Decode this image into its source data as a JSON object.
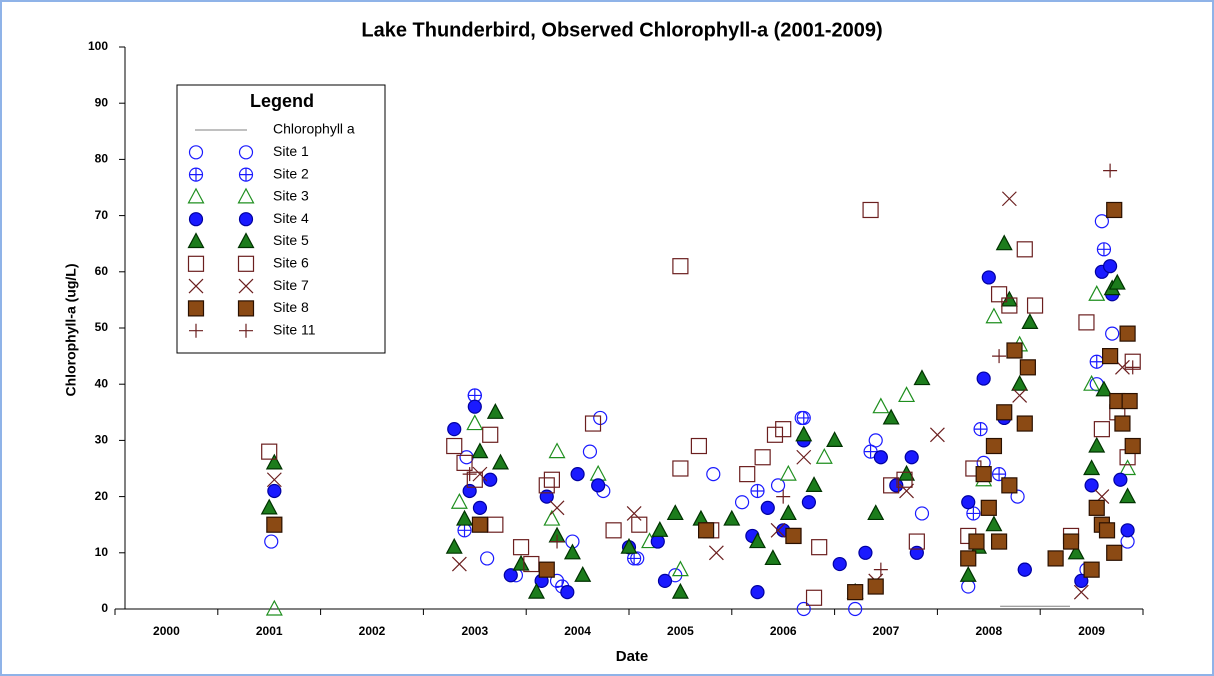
{
  "chart_data": {
    "type": "scatter",
    "title": "Lake Thunderbird, Observed Chlorophyll-a (2001-2009)",
    "xlabel": "Date",
    "ylabel": "Chlorophyll-a (ug/L)",
    "legend_title": "Legend",
    "xlim": [
      2000,
      2010
    ],
    "xticks": [
      2000,
      2001,
      2002,
      2003,
      2004,
      2005,
      2006,
      2007,
      2008,
      2009
    ],
    "ylim": [
      0,
      100
    ],
    "yticks": [
      0,
      10,
      20,
      30,
      40,
      50,
      60,
      70,
      80,
      90,
      100
    ],
    "series": [
      {
        "name": "Chlorophyll a",
        "color": "#808080",
        "marker": "line",
        "x": [
          2008.61,
          2009.29
        ],
        "values": [
          0.5,
          0.5
        ]
      },
      {
        "name": "Site 1",
        "color": "#1a1aff",
        "marker": "circle-open",
        "x": [
          2001.52,
          2003.5,
          2003.62,
          2003.42,
          2003.9,
          2004.72,
          2004.62,
          2004.45,
          2004.3,
          2004.75,
          2005.08,
          2005.82,
          2005.45,
          2006.1,
          2006.45,
          2006.68,
          2006.7,
          2007.2,
          2007.4,
          2007.85,
          2008.3,
          2008.45,
          2008.78,
          2008.85,
          2009.6,
          2009.7,
          2009.85,
          2009.55,
          2009.45
        ],
        "values": [
          12,
          38,
          9,
          27,
          6,
          34,
          28,
          12,
          5,
          21,
          9,
          24,
          6,
          19,
          22,
          34,
          0,
          0,
          30,
          17,
          4,
          26,
          20,
          7,
          69,
          49,
          12,
          40,
          7
        ]
      },
      {
        "name": "Site 2",
        "color": "#1a1aff",
        "marker": "circle-plus",
        "x": [
          2003.5,
          2003.4,
          2004.35,
          2005.05,
          2006.25,
          2006.7,
          2007.35,
          2008.42,
          2008.6,
          2009.62,
          2009.55,
          2008.35
        ],
        "values": [
          38,
          14,
          4,
          9,
          21,
          34,
          28,
          32,
          24,
          64,
          44,
          17
        ]
      },
      {
        "name": "Site 3",
        "color": "#1f8f1f",
        "marker": "triangle-open",
        "x": [
          2001.55,
          2003.35,
          2003.5,
          2004.3,
          2004.25,
          2004.7,
          2005.2,
          2005.5,
          2006.55,
          2006.9,
          2007.45,
          2007.7,
          2008.55,
          2008.8,
          2008.45,
          2009.55,
          2009.85,
          2009.5
        ],
        "values": [
          0,
          19,
          33,
          28,
          16,
          24,
          12,
          7,
          24,
          27,
          36,
          38,
          52,
          47,
          23,
          56,
          25,
          40
        ]
      },
      {
        "name": "Site 4",
        "color": "#1a1aff",
        "marker": "circle",
        "x": [
          2001.55,
          2003.3,
          2003.45,
          2003.5,
          2003.55,
          2003.65,
          2003.85,
          2004.2,
          2004.4,
          2004.5,
          2004.7,
          2004.15,
          2005.0,
          2005.28,
          2005.35,
          2006.2,
          2006.25,
          2006.35,
          2006.5,
          2006.7,
          2006.75,
          2007.05,
          2007.3,
          2007.45,
          2007.6,
          2007.75,
          2007.8,
          2008.3,
          2008.45,
          2008.5,
          2008.65,
          2008.85,
          2009.4,
          2009.5,
          2009.6,
          2009.68,
          2009.7,
          2009.78,
          2009.85
        ],
        "values": [
          21,
          32,
          21,
          36,
          18,
          23,
          6,
          20,
          3,
          24,
          22,
          5,
          11,
          12,
          5,
          13,
          3,
          18,
          14,
          30,
          19,
          8,
          10,
          27,
          22,
          27,
          10,
          19,
          41,
          59,
          34,
          7,
          5,
          22,
          60,
          61,
          56,
          23,
          14
        ]
      },
      {
        "name": "Site 5",
        "color": "#1c7c1c",
        "marker": "triangle",
        "x": [
          2001.5,
          2001.55,
          2003.3,
          2003.4,
          2003.55,
          2003.7,
          2003.75,
          2003.95,
          2004.1,
          2004.3,
          2004.45,
          2004.55,
          2005.0,
          2005.3,
          2005.45,
          2005.5,
          2005.7,
          2006.0,
          2006.25,
          2006.4,
          2006.55,
          2006.7,
          2006.8,
          2007.0,
          2007.2,
          2007.4,
          2007.55,
          2007.7,
          2007.85,
          2008.3,
          2008.4,
          2008.55,
          2008.65,
          2008.7,
          2008.8,
          2008.9,
          2009.35,
          2009.5,
          2009.55,
          2009.62,
          2009.7,
          2009.75,
          2009.85
        ],
        "values": [
          18,
          26,
          11,
          16,
          28,
          35,
          26,
          8,
          3,
          13,
          10,
          6,
          11,
          14,
          17,
          3,
          16,
          16,
          12,
          9,
          17,
          31,
          22,
          30,
          3,
          17,
          34,
          24,
          41,
          6,
          11,
          15,
          65,
          55,
          40,
          51,
          10,
          25,
          29,
          39,
          57,
          58,
          20
        ]
      },
      {
        "name": "Site 6",
        "color": "#6b1f1f",
        "marker": "square-open",
        "x": [
          2001.5,
          2003.3,
          2003.4,
          2003.5,
          2003.65,
          2003.7,
          2003.95,
          2004.2,
          2004.25,
          2004.05,
          2004.65,
          2004.85,
          2005.1,
          2005.5,
          2005.5,
          2005.68,
          2005.8,
          2006.15,
          2006.3,
          2006.42,
          2006.5,
          2006.6,
          2006.8,
          2006.85,
          2007.35,
          2007.55,
          2007.68,
          2007.8,
          2008.3,
          2008.35,
          2008.6,
          2008.7,
          2008.85,
          2008.95,
          2009.3,
          2009.45,
          2009.6,
          2009.75,
          2009.9,
          2009.85
        ],
        "values": [
          28,
          29,
          26,
          23,
          31,
          15,
          11,
          22,
          23,
          8,
          33,
          14,
          15,
          61,
          25,
          29,
          14,
          24,
          27,
          31,
          32,
          13,
          2,
          11,
          71,
          22,
          23,
          12,
          13,
          25,
          56,
          54,
          64,
          54,
          13,
          51,
          32,
          35,
          44,
          27
        ]
      },
      {
        "name": "Site 7",
        "color": "#6b1f1f",
        "marker": "x",
        "x": [
          2001.55,
          2003.35,
          2003.55,
          2004.3,
          2005.05,
          2005.85,
          2006.45,
          2006.7,
          2007.4,
          2007.7,
          2008.0,
          2008.7,
          2008.8,
          2009.4,
          2009.6,
          2009.8
        ],
        "values": [
          23,
          8,
          24,
          18,
          17,
          10,
          14,
          27,
          5,
          21,
          31,
          73,
          38,
          3,
          20,
          43
        ]
      },
      {
        "name": "Site 8",
        "color": "#8b4a14",
        "marker": "square",
        "x": [
          2001.55,
          2003.55,
          2004.2,
          2005.75,
          2006.6,
          2007.2,
          2007.4,
          2008.3,
          2008.38,
          2008.45,
          2008.5,
          2008.55,
          2008.6,
          2008.65,
          2008.7,
          2008.75,
          2008.85,
          2008.88,
          2009.15,
          2009.3,
          2009.5,
          2009.55,
          2009.6,
          2009.65,
          2009.72,
          2009.75,
          2009.8,
          2009.68,
          2009.72,
          2009.85,
          2009.87,
          2009.9
        ],
        "values": [
          15,
          15,
          7,
          14,
          13,
          3,
          4,
          9,
          12,
          24,
          18,
          29,
          12,
          35,
          22,
          46,
          33,
          43,
          9,
          12,
          7,
          18,
          15,
          14,
          10,
          37,
          33,
          45,
          71,
          49,
          37,
          29
        ]
      },
      {
        "name": "Site 11",
        "color": "#6b1f1f",
        "marker": "plus",
        "x": [
          2003.45,
          2004.3,
          2006.5,
          2007.45,
          2008.6,
          2009.68,
          2009.9
        ],
        "values": [
          24,
          12,
          20,
          7,
          45,
          78,
          43
        ]
      }
    ]
  }
}
